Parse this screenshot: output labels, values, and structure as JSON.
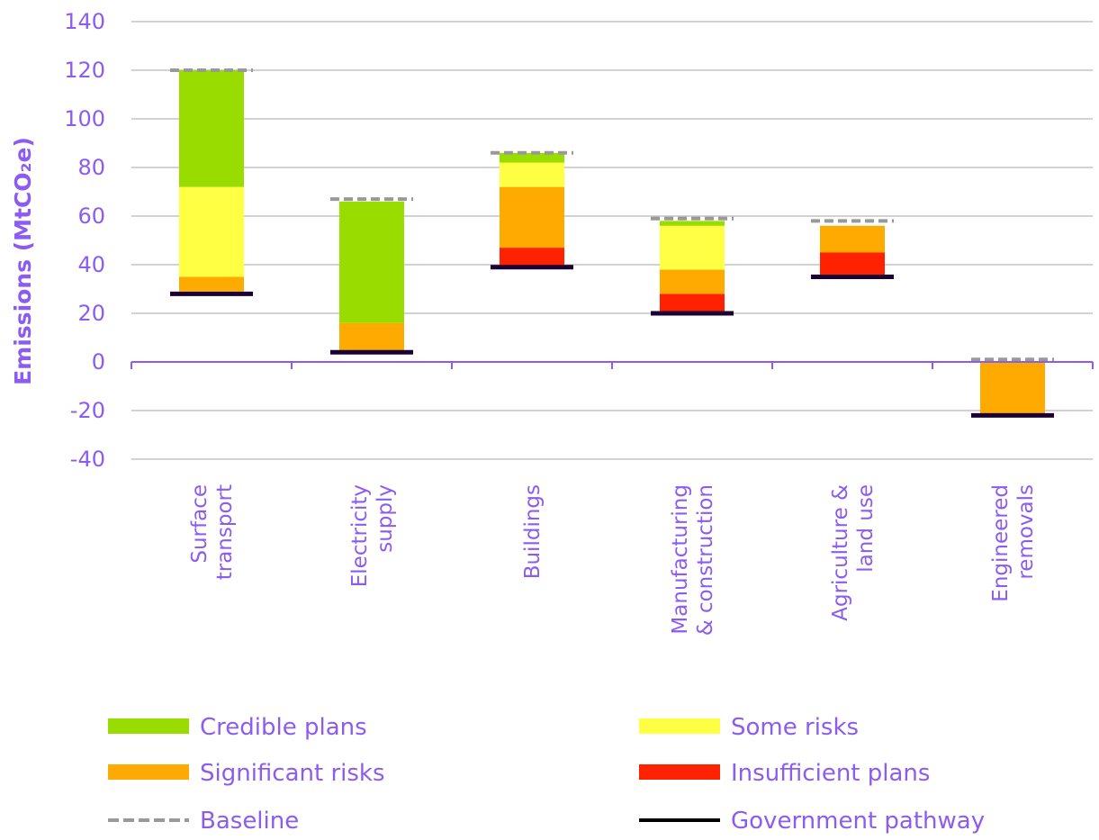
{
  "chart_data": {
    "type": "bar",
    "stacked": true,
    "title": "",
    "ylabel": "Emissions (MtCO₂e)",
    "ylim": [
      -40,
      140
    ],
    "yticks": [
      140,
      120,
      100,
      80,
      60,
      40,
      20,
      0,
      -20,
      -40
    ],
    "grid": true,
    "categories": [
      [
        "Surface",
        "transport"
      ],
      [
        "Electricity",
        "supply"
      ],
      [
        "Buildings"
      ],
      [
        "Manufacturing",
        "& construction"
      ],
      [
        "Agriculture &",
        "land use"
      ],
      [
        "Engineered",
        "removals"
      ]
    ],
    "series": [
      {
        "name": "Insufficient plans",
        "color": "#ff2200",
        "ranges": [
          null,
          null,
          [
            39,
            47
          ],
          [
            20,
            28
          ],
          [
            35,
            45
          ],
          null
        ]
      },
      {
        "name": "Significant risks",
        "color": "#ffaa00",
        "ranges": [
          [
            29,
            35
          ],
          [
            4,
            16
          ],
          [
            47,
            72
          ],
          [
            28,
            38
          ],
          [
            45,
            56
          ],
          [
            -22,
            0
          ]
        ]
      },
      {
        "name": "Some risks",
        "color": "#ffff44",
        "ranges": [
          [
            35,
            72
          ],
          null,
          [
            72,
            82
          ],
          [
            38,
            56
          ],
          null,
          null
        ]
      },
      {
        "name": "Credible plans",
        "color": "#99dd00",
        "ranges": [
          [
            72,
            120
          ],
          [
            16,
            66
          ],
          [
            82,
            86
          ],
          [
            56,
            58
          ],
          null,
          null
        ]
      }
    ],
    "baseline": {
      "name": "Baseline",
      "color": "#999999",
      "values": [
        120,
        67,
        86,
        59,
        58,
        1
      ]
    },
    "government_pathway": {
      "name": "Government pathway",
      "color": "#1a0033",
      "values": [
        28,
        4,
        39,
        20,
        35,
        -22
      ]
    },
    "legend": {
      "placement": "bottom",
      "items": [
        {
          "label": "Credible plans",
          "kind": "box",
          "color": "#99dd00"
        },
        {
          "label": "Some risks",
          "kind": "box",
          "color": "#ffff44"
        },
        {
          "label": "Significant risks",
          "kind": "box",
          "color": "#ffaa00"
        },
        {
          "label": "Insufficient plans",
          "kind": "box",
          "color": "#ff2200"
        },
        {
          "label": "Baseline",
          "kind": "dash",
          "color": "#999999"
        },
        {
          "label": "Government pathway",
          "kind": "line",
          "color": "#000000"
        }
      ]
    }
  }
}
